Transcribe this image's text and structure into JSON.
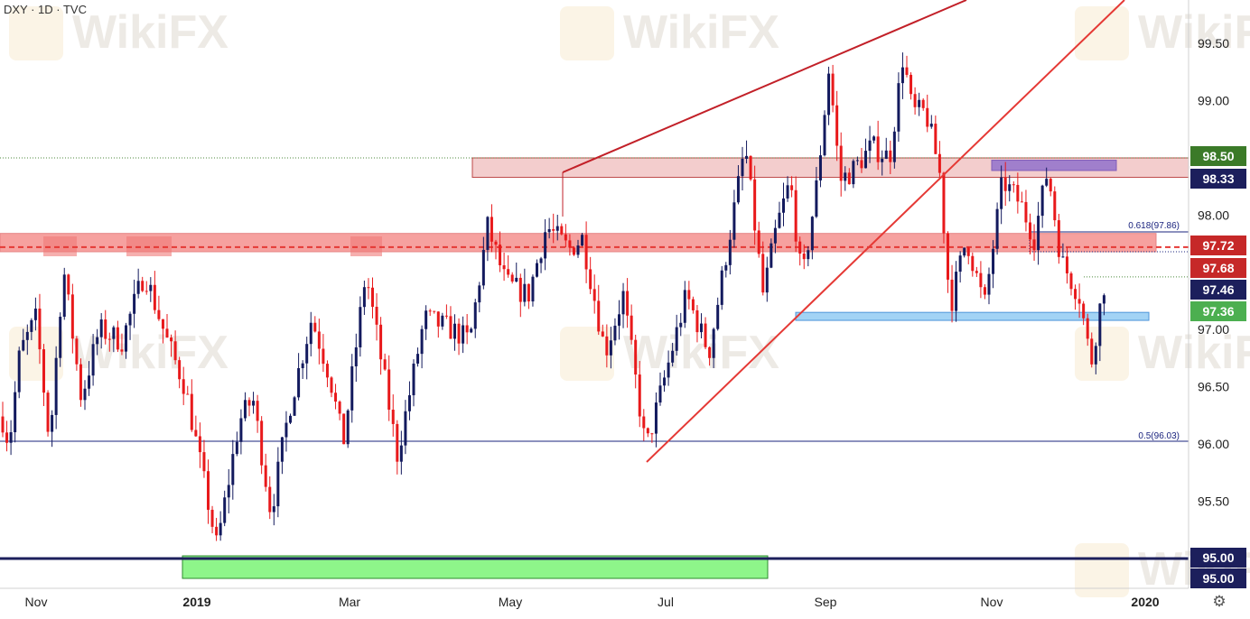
{
  "header": {
    "symbol": "DXY · 1D · TVC"
  },
  "watermark": "WikiFX",
  "colors": {
    "up_candle": "#131a5e",
    "down_candle": "#e8191b",
    "resistance_zone": "#f48a88",
    "upper_zone": "#f2c8c8",
    "support_zone_blue": "#99cff5",
    "support_zone_green": "#8ef58a",
    "purple_zone": "#9c7bcc",
    "trendline": "#c22028",
    "fib_line": "#1a237e",
    "dotted_line": "#4e8a3e",
    "price_tag_green": "#4caf50",
    "price_tag_navy": "#1c1f5c",
    "price_tag_red": "#c62828",
    "price_tag_darkgreen": "#3b7a28"
  },
  "chart_data": {
    "type": "candlestick",
    "title": "DXY, 1D, TVC",
    "y_axis": {
      "range": [
        94.87,
        99.85
      ],
      "ticks": [
        "99.50",
        "99.00",
        "98.00",
        "97.00",
        "96.50",
        "96.00",
        "95.50"
      ]
    },
    "x_axis": {
      "ticks": [
        "Nov",
        "2019",
        "Mar",
        "May",
        "Jul",
        "Sep",
        "Nov",
        "2020"
      ]
    },
    "price_tags": [
      {
        "label": "98.50",
        "style": "darkgreen"
      },
      {
        "label": "98.33",
        "style": "navy"
      },
      {
        "label": "97.72",
        "style": "red"
      },
      {
        "label": "97.68",
        "style": "red"
      },
      {
        "label": "97.46",
        "style": "navy"
      },
      {
        "label": "97.36",
        "style": "green"
      },
      {
        "label": "95.00",
        "style": "navy"
      },
      {
        "label": "95.00",
        "style": "navy"
      }
    ],
    "fib_levels": [
      {
        "label": "0.618(97.86)",
        "value": 97.86
      },
      {
        "label": "0.5(96.03)",
        "value": 96.03
      }
    ],
    "zones": [
      {
        "name": "upper-resistance-zone",
        "from": 98.33,
        "to": 98.5
      },
      {
        "name": "resistance-zone",
        "from": 97.68,
        "to": 97.84
      },
      {
        "name": "support-zone",
        "from": 97.08,
        "to": 97.15
      },
      {
        "name": "purple-zone",
        "from": 98.39,
        "to": 98.48
      },
      {
        "name": "long-term-support-zone",
        "from": 94.8,
        "to": 95.02
      }
    ],
    "horizontal_lines": [
      {
        "name": "level-98.50",
        "value": 98.5
      },
      {
        "name": "level-97.72",
        "value": 97.72
      },
      {
        "name": "level-97.46",
        "value": 97.46
      },
      {
        "name": "level-95.00",
        "value": 95.0
      }
    ]
  }
}
